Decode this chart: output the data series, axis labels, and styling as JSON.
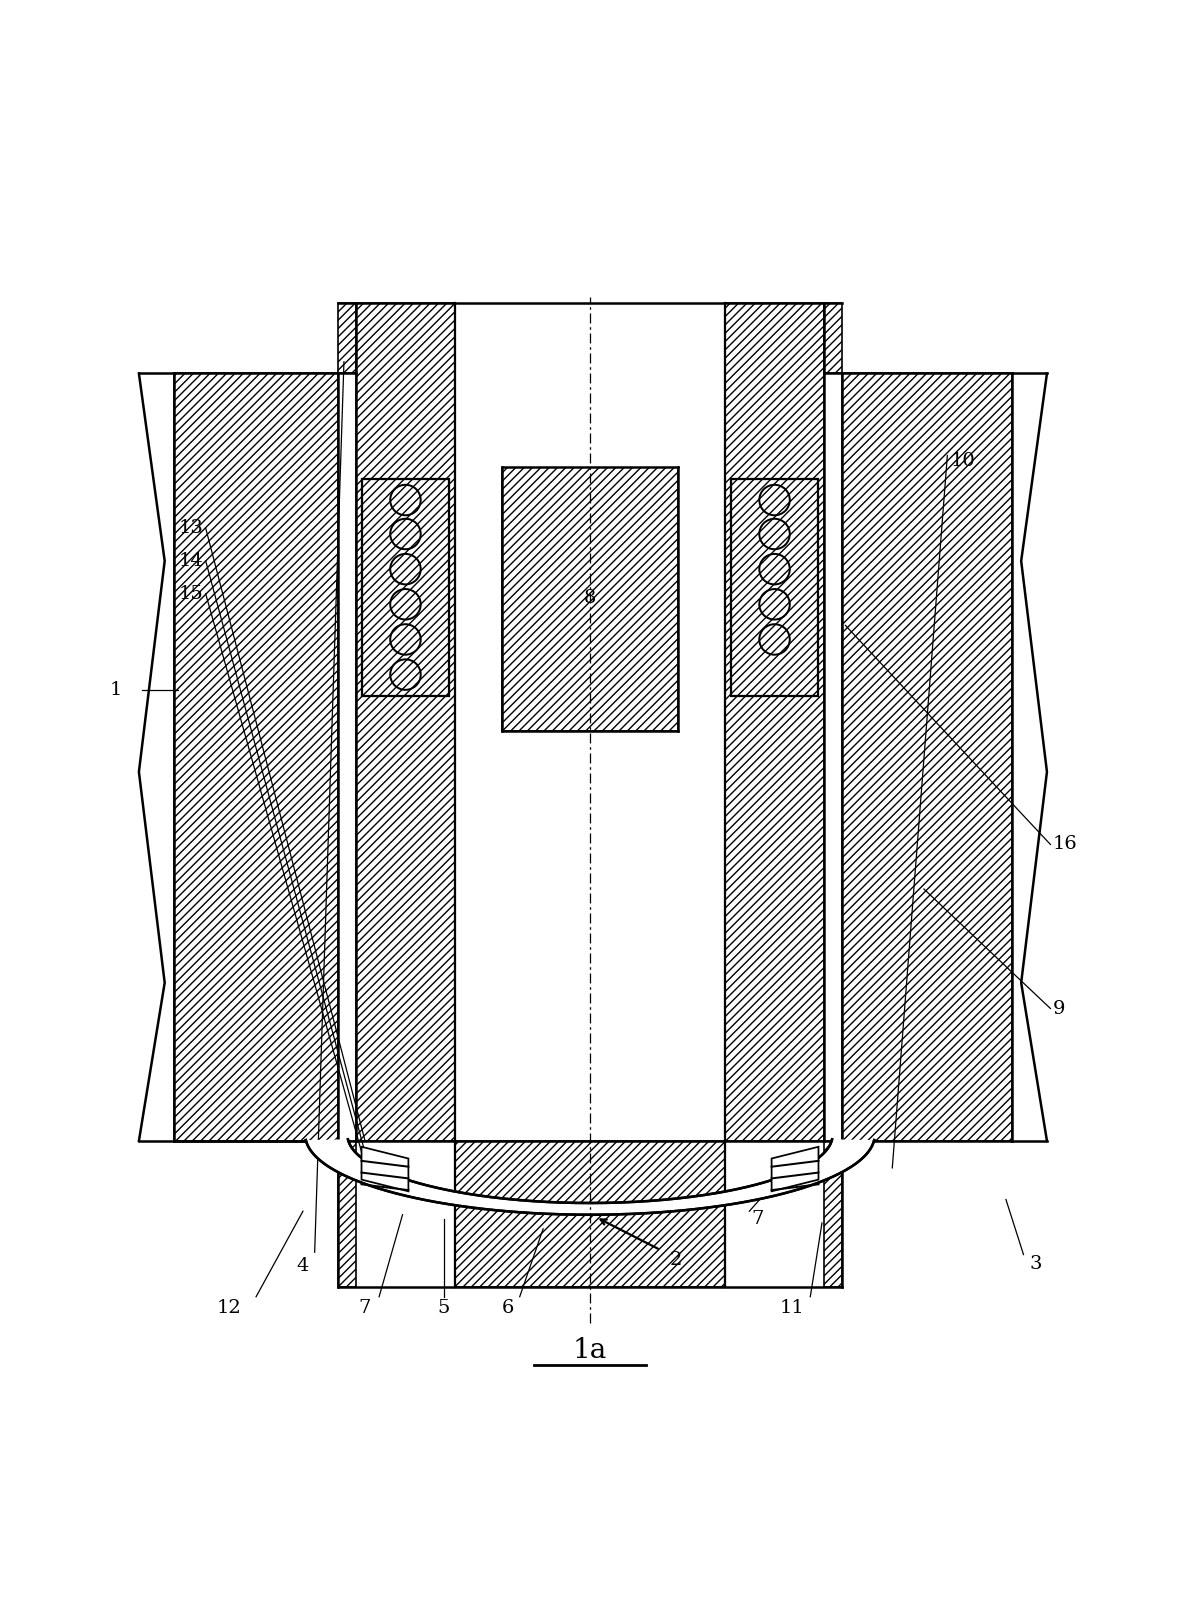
{
  "bg_color": "#ffffff",
  "line_color": "#000000",
  "fig_width": 11.8,
  "fig_height": 16.14,
  "title": "1a"
}
